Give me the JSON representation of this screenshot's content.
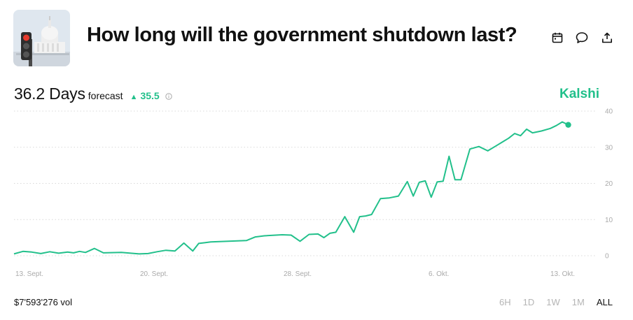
{
  "market": {
    "title": "How long will the government shutdown last?"
  },
  "header_icons": [
    "calendar-icon",
    "comment-icon",
    "share-icon"
  ],
  "forecast": {
    "value": "36.2 Days",
    "label": "forecast",
    "delta": "35.5",
    "delta_direction": "up"
  },
  "brand": "Kalshi",
  "volume": "$7'593'276 vol",
  "ranges": [
    "6H",
    "1D",
    "1W",
    "1M",
    "ALL"
  ],
  "active_range": "ALL",
  "colors": {
    "accent": "#22c08b",
    "grid": "#d9d9d9",
    "tick": "#aaaaaa",
    "inactive": "#b5b5b5"
  },
  "chart_data": {
    "type": "line",
    "title": "",
    "xlabel": "",
    "ylabel": "",
    "ylim": [
      0,
      40
    ],
    "yticks": [
      "0",
      "10",
      "20",
      "30",
      "40"
    ],
    "xticks": [
      "13. Sept.",
      "20. Sept.",
      "28. Sept.",
      "6. Okt.",
      "13. Okt."
    ],
    "grid": true,
    "y_axis_position": "right",
    "series": [
      {
        "x": [
          "13. Sept.",
          "13. Sept.",
          "14. Sept.",
          "14. Sept.",
          "15. Sept.",
          "15. Sept.",
          "16. Sept.",
          "16. Sept.",
          "16. Sept.",
          "17. Sept.",
          "17. Sept.",
          "18. Sept.",
          "19. Sept.",
          "20. Sept.",
          "20. Sept.",
          "21. Sept.",
          "21. Sept.",
          "22. Sept.",
          "22. Sept.",
          "23. Sept.",
          "23. Sept.",
          "23. Sept.",
          "24. Sept.",
          "25. Sept.",
          "26. Sept.",
          "26. Sept.",
          "27. Sept.",
          "28. Sept.",
          "28. Sept.",
          "29. Sept.",
          "29. Sept.",
          "30. Sept.",
          "30. Sept.",
          "30. Sept.",
          "1. Okt.",
          "1. Okt.",
          "2. Okt.",
          "2. Okt.",
          "2. Okt.",
          "3. Okt.",
          "3. Okt.",
          "4. Okt.",
          "4. Okt.",
          "5. Okt.",
          "5. Okt.",
          "5. Okt.",
          "6. Okt.",
          "6. Okt.",
          "6. Okt.",
          "7. Okt.",
          "7. Okt.",
          "7. Okt.",
          "8. Okt.",
          "8. Okt.",
          "9. Okt.",
          "9. Okt.",
          "10. Okt.",
          "10. Okt.",
          "10. Okt.",
          "11. Okt.",
          "11. Okt.",
          "11. Okt.",
          "12. Okt.",
          "12. Okt.",
          "13. Okt.",
          "13. Okt.",
          "13. Okt.",
          "14. Okt."
        ],
        "y": [
          0.5,
          1.2,
          1.0,
          0.6,
          1.1,
          0.7,
          1.0,
          0.8,
          1.2,
          0.9,
          2.0,
          0.8,
          0.9,
          0.5,
          0.6,
          1.1,
          1.5,
          1.3,
          3.5,
          1.3,
          3.4,
          3.6,
          3.8,
          4.0,
          4.2,
          5.2,
          5.5,
          5.8,
          5.7,
          4.0,
          5.9,
          6.0,
          5.0,
          6.2,
          6.5,
          10.8,
          6.5,
          10.8,
          11.0,
          11.4,
          15.8,
          16.0,
          16.5,
          20.5,
          16.5,
          20.3,
          20.7,
          16.2,
          20.4,
          20.6,
          27.5,
          21.0,
          21.0,
          29.5,
          30.2,
          29.0,
          30.5,
          31.5,
          32.5,
          33.8,
          33.2,
          35.0,
          34.0,
          34.5,
          35.2,
          36.0,
          37.0,
          36.2
        ]
      }
    ]
  }
}
